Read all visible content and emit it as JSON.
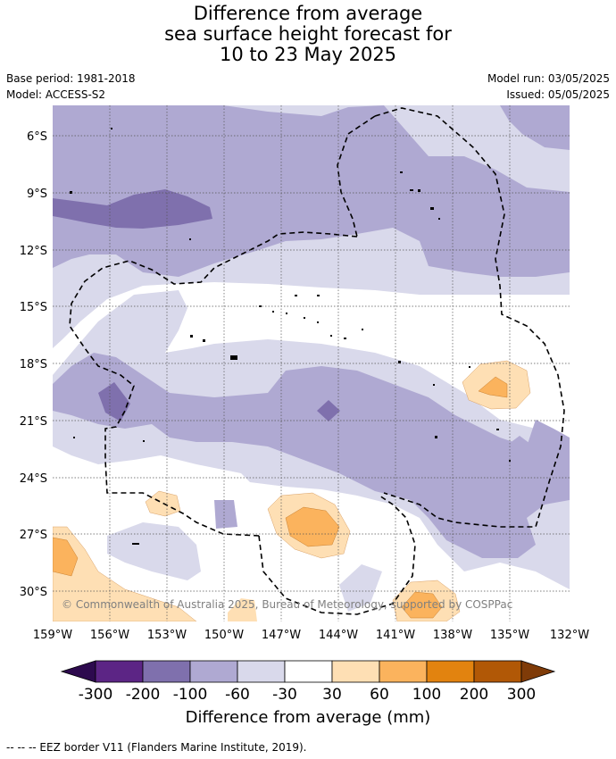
{
  "title": {
    "line1": "Difference from average",
    "line2": "sea surface height forecast for",
    "line3": "10 to 23 May 2025"
  },
  "meta": {
    "base_period": "Base period: 1981-2018",
    "model": "Model: ACCESS-S2",
    "model_run": "Model run: 03/05/2025",
    "issued": "Issued: 05/05/2025"
  },
  "map": {
    "lon_ticks": [
      "159°W",
      "156°W",
      "153°W",
      "150°W",
      "147°W",
      "144°W",
      "141°W",
      "138°W",
      "135°W",
      "132°W"
    ],
    "lat_ticks": [
      "6°S",
      "9°S",
      "12°S",
      "15°S",
      "18°S",
      "21°S",
      "24°S",
      "27°S",
      "30°S"
    ],
    "copyright": "© Commonwealth of Australia 2025, Bureau of Meteorology, supported by COSPPac",
    "grid": true
  },
  "colorbar": {
    "title": "Difference from average (mm)",
    "labels": [
      "-300",
      "-200",
      "-100",
      "-60",
      "-30",
      "30",
      "60",
      "100",
      "200",
      "300"
    ],
    "colors": [
      "#2d0a4e",
      "#5c2585",
      "#7f70ad",
      "#afa9d2",
      "#d9d9eb",
      "#ffffff",
      "#fedfb4",
      "#fbb35d",
      "#e2830f",
      "#b15806",
      "#7f3b08"
    ]
  },
  "footer": {
    "eez_note": "--  --  -- EEZ border V11 (Flanders Marine Institute, 2019)."
  }
}
